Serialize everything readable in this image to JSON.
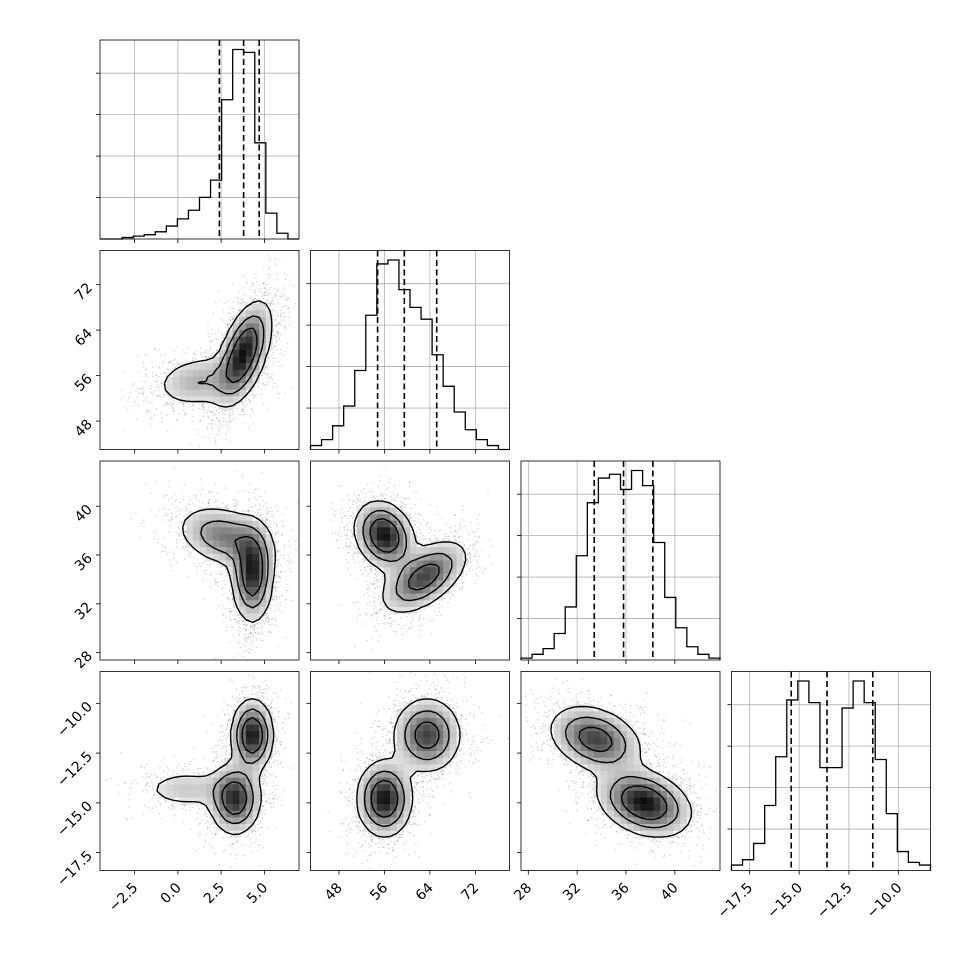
{
  "chart_data": {
    "type": "corner",
    "grid": true,
    "parameters": [
      {
        "range": [
          -4.5,
          7.0
        ],
        "ticks": [
          -2.5,
          0.0,
          2.5,
          5.0
        ],
        "tick_labels": [
          "−2.5",
          "0.0",
          "2.5",
          "5.0"
        ],
        "quantiles": [
          2.4,
          3.8,
          4.7
        ],
        "hist_counts": [
          0,
          0,
          1,
          2,
          3,
          5,
          9,
          14,
          20,
          29,
          41,
          97,
          132,
          130,
          67,
          18,
          4,
          0
        ]
      },
      {
        "range": [
          43,
          78
        ],
        "ticks": [
          48,
          56,
          64,
          72
        ],
        "tick_labels": [
          "48",
          "56",
          "64",
          "72"
        ],
        "quantiles": [
          54.8,
          59.5,
          65.2
        ],
        "hist_counts": [
          2,
          5,
          12,
          22,
          40,
          68,
          94,
          96,
          81,
          72,
          66,
          48,
          32,
          19,
          10,
          5,
          2,
          0
        ]
      },
      {
        "range": [
          27.4,
          43.7
        ],
        "ticks": [
          28,
          32,
          36,
          40
        ],
        "tick_labels": [
          "28",
          "32",
          "36",
          "40"
        ],
        "quantiles": [
          33.4,
          35.8,
          38.2
        ],
        "hist_counts": [
          1,
          3,
          6,
          14,
          28,
          55,
          83,
          96,
          98,
          90,
          100,
          92,
          62,
          33,
          17,
          7,
          3,
          1
        ]
      },
      {
        "range": [
          -18.4,
          -8.4
        ],
        "ticks": [
          -17.5,
          -15.0,
          -12.5,
          -10.0
        ],
        "tick_labels": [
          "−17.5",
          "−15.0",
          "−12.5",
          "−10.0"
        ],
        "quantiles": [
          -15.4,
          -13.6,
          -11.3
        ],
        "hist_counts": [
          2,
          4,
          10,
          24,
          42,
          63,
          70,
          62,
          38,
          38,
          60,
          70,
          62,
          41,
          21,
          7,
          3,
          2
        ]
      }
    ],
    "pairs": [
      {
        "x": 0,
        "y": 1,
        "modes": [
          {
            "mx": 3.8,
            "my": 60,
            "sx": 0.8,
            "sy": 4.5,
            "rho": 0.55,
            "w": 1.0
          },
          {
            "mx": 1.2,
            "my": 55,
            "sx": 1.4,
            "sy": 2.5,
            "rho": 0.2,
            "w": 0.35
          }
        ]
      },
      {
        "x": 0,
        "y": 2,
        "modes": [
          {
            "mx": 4.3,
            "my": 34.5,
            "sx": 0.6,
            "sy": 2.0,
            "rho": 0.0,
            "w": 1.0
          },
          {
            "mx": 2.7,
            "my": 37.5,
            "sx": 1.4,
            "sy": 1.3,
            "rho": -0.3,
            "w": 0.6
          }
        ]
      },
      {
        "x": 1,
        "y": 2,
        "modes": [
          {
            "mx": 56,
            "my": 37.6,
            "sx": 2.6,
            "sy": 1.4,
            "rho": -0.2,
            "w": 1.0
          },
          {
            "mx": 63,
            "my": 34.2,
            "sx": 3.8,
            "sy": 1.5,
            "rho": 0.55,
            "w": 0.8
          }
        ]
      },
      {
        "x": 0,
        "y": 3,
        "modes": [
          {
            "mx": 4.3,
            "my": -11.6,
            "sx": 0.6,
            "sy": 0.9,
            "rho": 0.0,
            "w": 1.0
          },
          {
            "mx": 3.3,
            "my": -14.8,
            "sx": 0.75,
            "sy": 0.9,
            "rho": 0.0,
            "w": 0.9
          },
          {
            "mx": 0.5,
            "my": -14.3,
            "sx": 1.5,
            "sy": 0.55,
            "rho": 0.0,
            "w": 0.25
          }
        ]
      },
      {
        "x": 1,
        "y": 3,
        "modes": [
          {
            "mx": 56,
            "my": -14.8,
            "sx": 2.4,
            "sy": 0.95,
            "rho": 0.0,
            "w": 1.0
          },
          {
            "mx": 63.5,
            "my": -11.6,
            "sx": 3.0,
            "sy": 0.95,
            "rho": 0.0,
            "w": 0.8
          }
        ]
      },
      {
        "x": 2,
        "y": 3,
        "modes": [
          {
            "mx": 37.5,
            "my": -15.0,
            "sx": 1.9,
            "sy": 0.85,
            "rho": -0.3,
            "w": 1.0
          },
          {
            "mx": 33.5,
            "my": -11.8,
            "sx": 1.9,
            "sy": 0.85,
            "rho": -0.3,
            "w": 0.8
          }
        ]
      }
    ]
  }
}
